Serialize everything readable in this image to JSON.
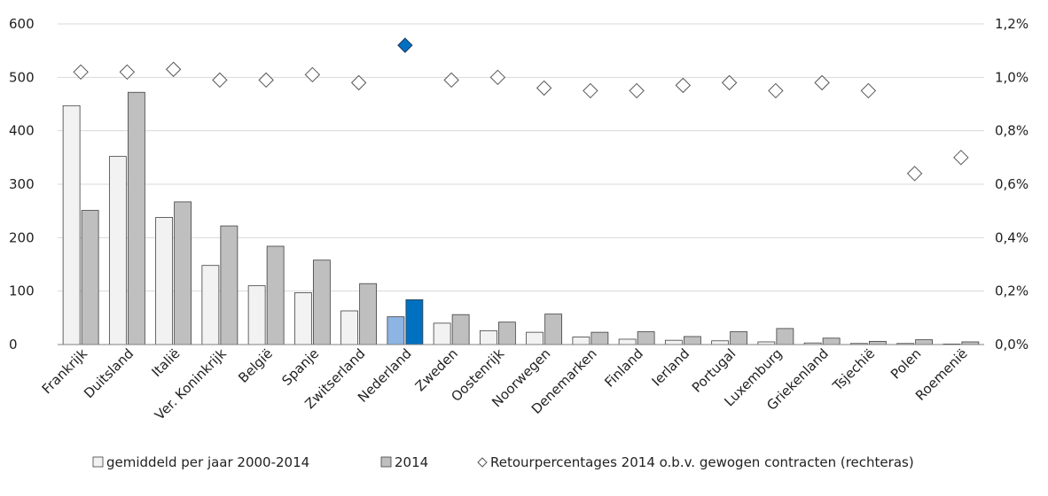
{
  "chart_data": {
    "type": "bar",
    "categories": [
      "Frankrijk",
      "Duitsland",
      "Italië",
      "Ver. Koninkrijk",
      "België",
      "Spanje",
      "Zwitserland",
      "Nederland",
      "Zweden",
      "Oostenrijk",
      "Noorwegen",
      "Denemarken",
      "Finland",
      "Ierland",
      "Portugal",
      "Luxemburg",
      "Griekenland",
      "Tsjechië",
      "Polen",
      "Roemenië"
    ],
    "series": [
      {
        "name": "gemiddeld per jaar 2000-2014",
        "axis": "left",
        "kind": "bar",
        "values": [
          447,
          352,
          238,
          148,
          110,
          97,
          63,
          52,
          40,
          26,
          23,
          14,
          10,
          8,
          7,
          5,
          3,
          2,
          2,
          1
        ],
        "color": "#f2f2f2",
        "highlight_color": "#8db4e2"
      },
      {
        "name": "2014",
        "axis": "left",
        "kind": "bar",
        "values": [
          251,
          472,
          267,
          222,
          184,
          158,
          114,
          84,
          56,
          42,
          57,
          23,
          24,
          15,
          24,
          30,
          12,
          6,
          9,
          5
        ],
        "color": "#bfbfbf",
        "highlight_color": "#0070c0"
      },
      {
        "name": "Retourpercentages 2014 o.b.v. gewogen contracten (rechteras)",
        "axis": "right",
        "kind": "marker",
        "values": [
          1.02,
          1.02,
          1.03,
          0.99,
          0.99,
          1.01,
          0.98,
          1.12,
          0.99,
          1.0,
          0.96,
          0.95,
          0.95,
          0.97,
          0.98,
          0.95,
          0.98,
          0.95,
          0.64,
          0.7
        ],
        "color": "#ffffff",
        "highlight_color": "#0070c0"
      }
    ],
    "highlight_category": "Nederland",
    "ylim_left": [
      0,
      600
    ],
    "yticks_left": [
      "0",
      "100",
      "200",
      "300",
      "400",
      "500",
      "600"
    ],
    "ylim_right": [
      0,
      1.2
    ],
    "yticks_right": [
      "0,0%",
      "0,2%",
      "0,4%",
      "0,6%",
      "0,8%",
      "1,0%",
      "1,2%"
    ],
    "grid": true,
    "legend_position": "bottom",
    "legend": [
      {
        "symbol": "□",
        "label": "gemiddeld per jaar 2000-2014"
      },
      {
        "symbol": "□",
        "label": "2014"
      },
      {
        "symbol": "◇",
        "label": "Retourpercentages 2014 o.b.v. gewogen contracten (rechteras)"
      }
    ]
  }
}
